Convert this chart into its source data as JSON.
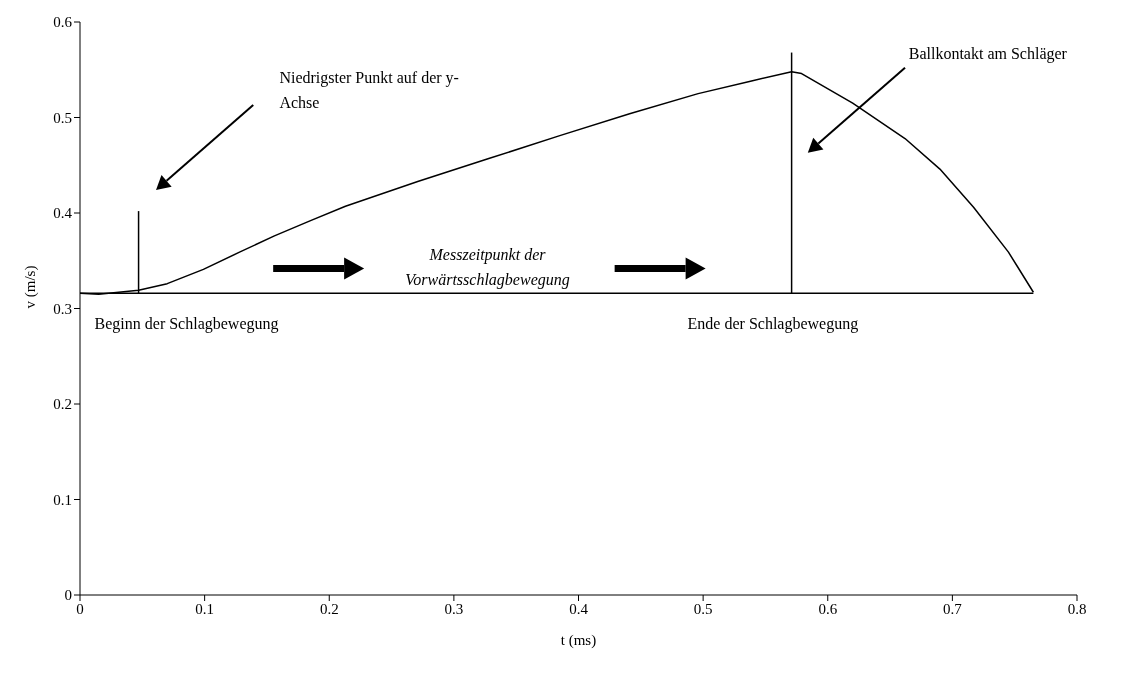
{
  "chart_data": {
    "type": "line",
    "xlabel": "t (ms)",
    "ylabel": "v (m/s)",
    "xlim": [
      0,
      0.8
    ],
    "xticks": [
      0,
      0.1,
      0.2,
      0.3,
      0.4,
      0.5,
      0.6,
      0.7,
      0.8
    ],
    "ylim": [
      0,
      0.6
    ],
    "yticks": [
      0,
      0.1,
      0.2,
      0.3,
      0.4,
      0.5,
      0.6
    ],
    "marker": "none",
    "line_style": "solid",
    "series": [
      {
        "color": "#000000",
        "x": [
          0,
          0.015,
          0.047,
          0.07,
          0.099,
          0.128,
          0.156,
          0.185,
          0.213,
          0.271,
          0.328,
          0.385,
          0.441,
          0.496,
          0.538,
          0.571,
          0.579,
          0.62,
          0.662,
          0.69,
          0.717,
          0.745,
          0.765
        ],
        "values": [
          0.316,
          0.315,
          0.319,
          0.326,
          0.341,
          0.359,
          0.376,
          0.392,
          0.407,
          0.433,
          0.457,
          0.481,
          0.504,
          0.525,
          0.538,
          0.548,
          0.546,
          0.515,
          0.478,
          0.446,
          0.406,
          0.359,
          0.317
        ]
      },
      {
        "color": "#000000",
        "x": [
          0,
          0.765
        ],
        "values": [
          0.316,
          0.316
        ]
      },
      {
        "color": "#000000",
        "x": [
          0.047,
          0.047
        ],
        "values": [
          0.316,
          0.402
        ]
      },
      {
        "color": "#000000",
        "x": [
          0.571,
          0.571
        ],
        "values": [
          0.316,
          0.568
        ]
      }
    ],
    "annotations": [
      "Niedrigster Punkt auf der y-Achse",
      "Ballkontakt am Schläger",
      {
        "text": "Beginn der Schlagbewegung",
        "x": 0.047,
        "y": 0.316
      },
      {
        "text": "Ende der Schlagbewegung",
        "x": 0.571,
        "y": 0.316
      },
      "Messzeitpunkt der Vorwärtsschlagbewegung"
    ]
  }
}
